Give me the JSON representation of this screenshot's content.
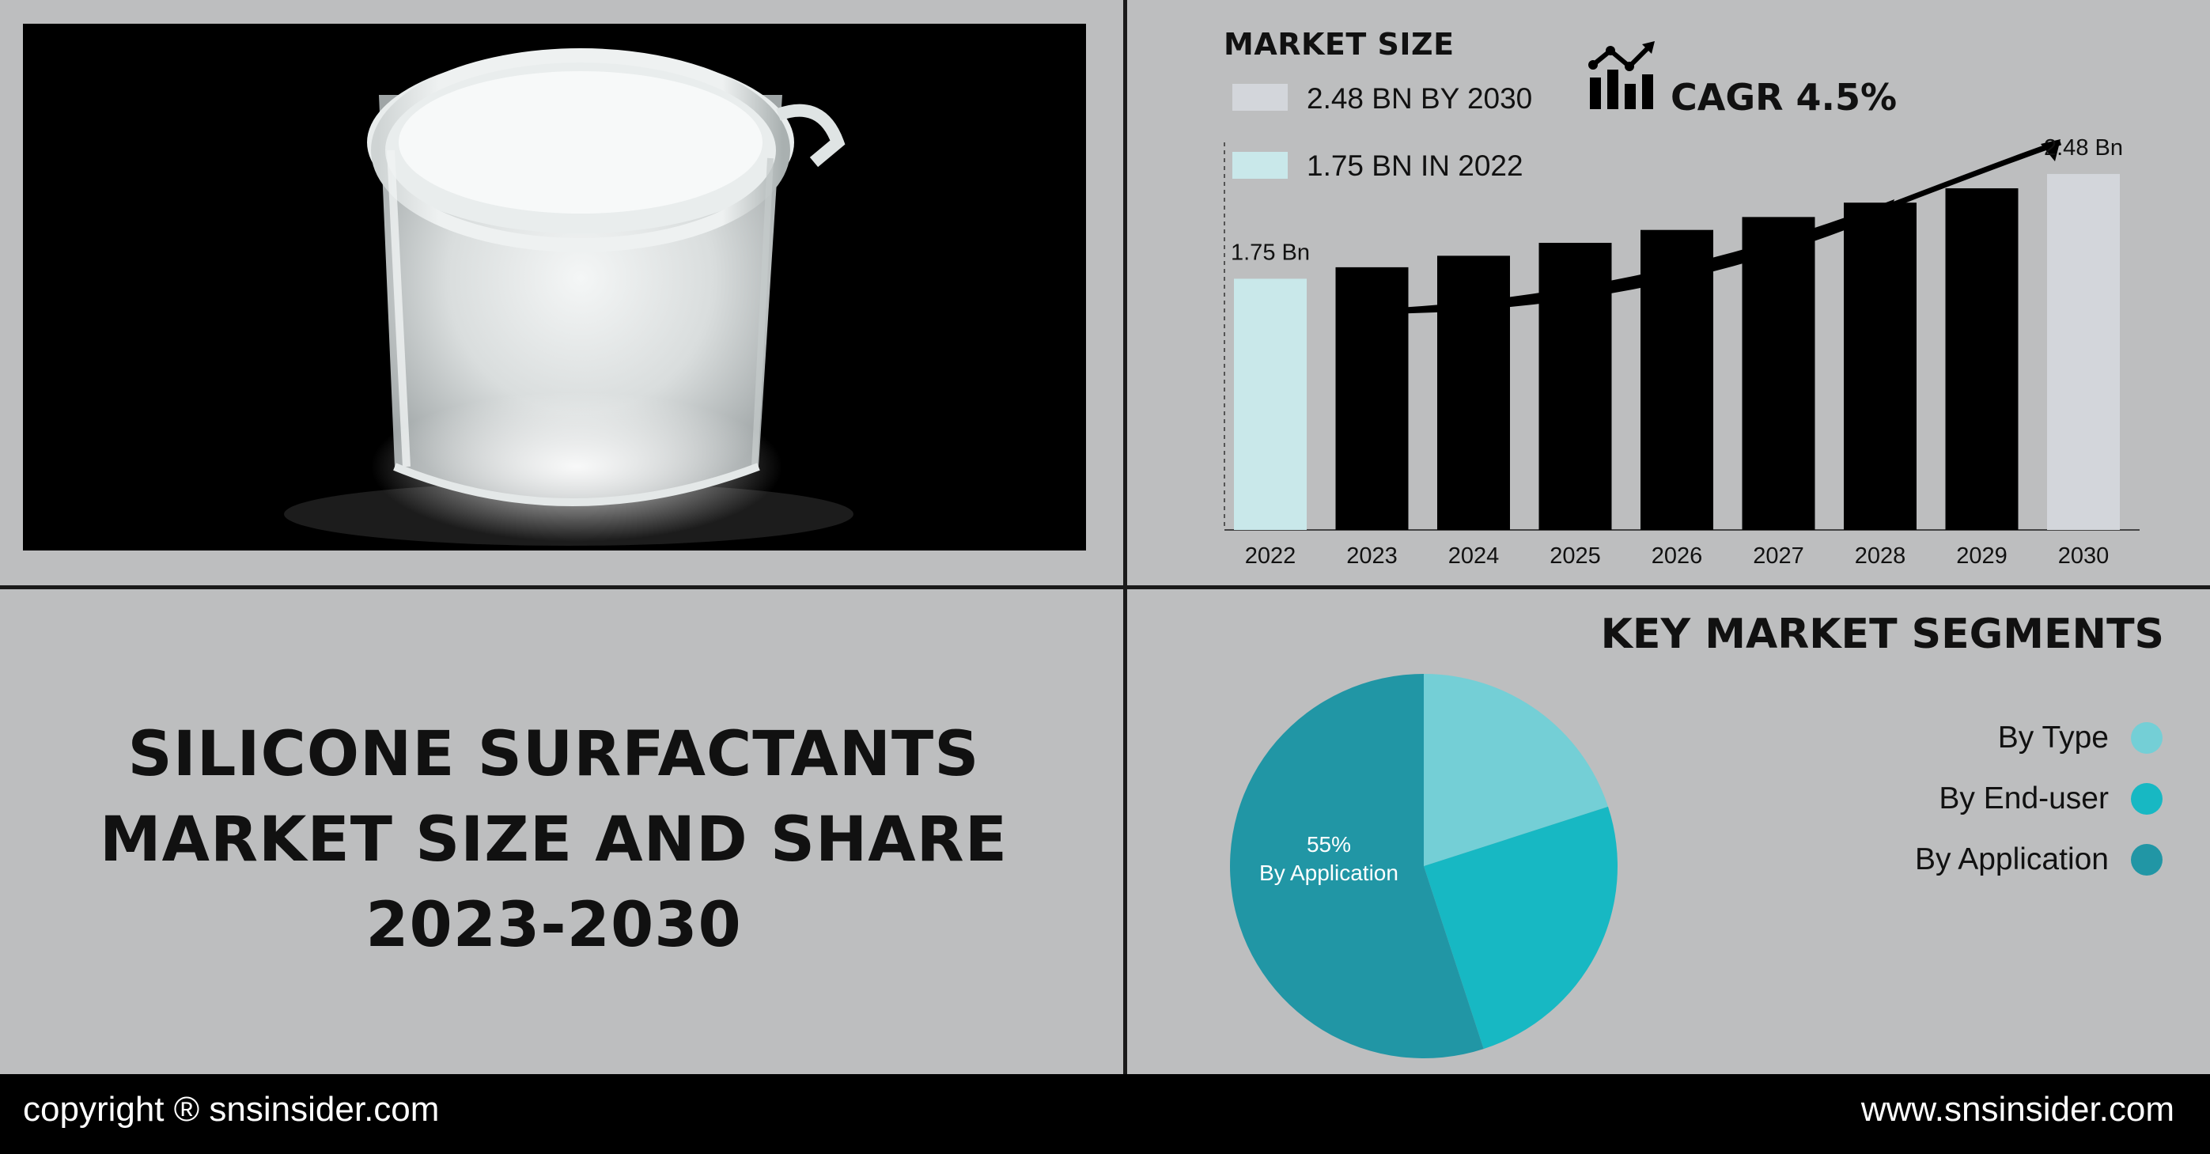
{
  "market_size": {
    "heading": "MARKET SIZE",
    "legend": [
      {
        "label": "2.48 BN BY 2030",
        "color": "#d3d6db"
      },
      {
        "label": "1.75 BN IN 2022",
        "color": "#c9e8ea"
      }
    ],
    "cagr": "CAGR 4.5%"
  },
  "chart_data": [
    {
      "type": "bar",
      "categories": [
        "2022",
        "2023",
        "2024",
        "2025",
        "2026",
        "2027",
        "2028",
        "2029",
        "2030"
      ],
      "values": [
        1.75,
        1.83,
        1.91,
        2.0,
        2.09,
        2.18,
        2.28,
        2.38,
        2.48
      ],
      "data_labels": {
        "2022": "1.75 Bn",
        "2030": "2.48 Bn"
      },
      "bar_colors": [
        "#c9e8ea",
        "#000000",
        "#000000",
        "#000000",
        "#000000",
        "#000000",
        "#000000",
        "#000000",
        "#d3d6db"
      ],
      "ylim": [
        0,
        2.7
      ],
      "grid": false
    },
    {
      "type": "pie",
      "slices": [
        {
          "name": "By Type",
          "value": 20,
          "color": "#74cfd6"
        },
        {
          "name": "By End-user",
          "value": 25,
          "color": "#17b8c3"
        },
        {
          "name": "By Application",
          "value": 55,
          "color": "#2196a5"
        }
      ],
      "slice_label": {
        "value": "55%",
        "name": "By Application"
      }
    }
  ],
  "title": {
    "line1": "SILICONE SURFACTANTS",
    "line2": "MARKET  SIZE AND SHARE",
    "line3": "2023-2030"
  },
  "segments": {
    "heading": "KEY MARKET SEGMENTS",
    "items": [
      {
        "label": "By Type",
        "color": "#74cfd6"
      },
      {
        "label": "By End-user",
        "color": "#17b8c3"
      },
      {
        "label": "By Application",
        "color": "#2196a5"
      }
    ]
  },
  "footer": {
    "left": "copyright ® snsinsider.com",
    "right": "www.snsinsider.com"
  }
}
